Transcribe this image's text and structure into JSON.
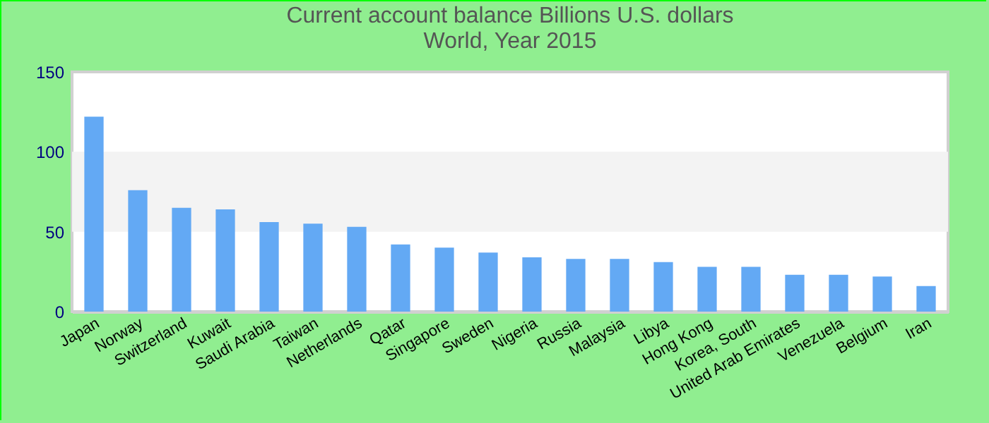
{
  "chart_data": {
    "type": "bar",
    "title": "Current account balance Billions U.S. dollars",
    "subtitle": "World, Year 2015",
    "categories": [
      "Japan",
      "Norway",
      "Switzerland",
      "Kuwait",
      "Saudi Arabia",
      "Taiwan",
      "Netherlands",
      "Qatar",
      "Singapore",
      "Sweden",
      "Nigeria",
      "Russia",
      "Malaysia",
      "Libya",
      "Hong Kong",
      "Korea, South",
      "United Arab Emirates",
      "Venezuela",
      "Belgium",
      "Iran"
    ],
    "values": [
      122,
      76,
      65,
      64,
      56,
      55,
      53,
      42,
      40,
      37,
      34,
      33,
      33,
      31,
      28,
      28,
      23,
      23,
      22,
      16
    ],
    "color": "#63a9f4",
    "ylim": [
      0,
      150
    ],
    "yticks": [
      0,
      50,
      100,
      150
    ],
    "grid": false,
    "bands": [
      {
        "axis": "y",
        "from": 50,
        "to": 100,
        "color": "#f3f3f3"
      }
    ]
  }
}
